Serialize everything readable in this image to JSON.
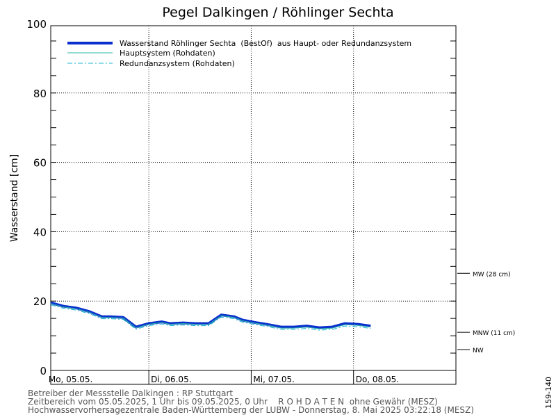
{
  "chart_data": {
    "type": "line",
    "title": "Pegel Dalkingen / Röhlinger Sechta",
    "ylabel": "Wasserstand [cm]",
    "xlabel": "",
    "ylim": [
      0,
      100
    ],
    "y_ticks": [
      "0",
      "20",
      "40",
      "60",
      "80",
      "100"
    ],
    "x_range": [
      "05.05.2025 01:00",
      "09.05.2025 00:00"
    ],
    "x_ticks": [
      "Mo, 05.05.",
      "Di, 06.05.",
      "Mi, 07.05.",
      "Do, 08.05."
    ],
    "grid": true,
    "legend_position": "top-left",
    "series": [
      {
        "name": "Wasserstand Röhlinger Sechta  (BestOf)  aus Haupt- oder Redundanzsystem",
        "color": "#0a2fcf",
        "style": "thick",
        "x": [
          "05.05. 01:00",
          "05.05. 04:00",
          "05.05. 07:00",
          "05.05. 10:00",
          "05.05. 13:00",
          "05.05. 15:00",
          "05.05. 18:00",
          "05.05. 21:00",
          "06.05. 00:00",
          "06.05. 03:00",
          "06.05. 05:00",
          "06.05. 08:00",
          "06.05. 11:00",
          "06.05. 14:00",
          "06.05. 17:00",
          "06.05. 20:00",
          "06.05. 22:00",
          "07.05. 01:00",
          "07.05. 04:00",
          "07.05. 07:00",
          "07.05. 10:00",
          "07.05. 13:00",
          "07.05. 16:00",
          "07.05. 19:00",
          "07.05. 22:00",
          "08.05. 01:00",
          "08.05. 04:00"
        ],
        "y": [
          19.5,
          18.5,
          18,
          17,
          15.5,
          15.5,
          15.3,
          12.5,
          13.5,
          14,
          13.5,
          13.7,
          13.5,
          13.5,
          16,
          15.5,
          14.5,
          13.8,
          13.2,
          12.5,
          12.5,
          12.8,
          12.3,
          12.5,
          13.5,
          13.3,
          12.8
        ]
      },
      {
        "name": "Hauptsystem (Rohdaten)",
        "color": "#2ab6a6",
        "style": "thin",
        "x": [
          "05.05. 01:00",
          "05.05. 04:00",
          "05.05. 07:00",
          "05.05. 10:00",
          "05.05. 13:00",
          "05.05. 15:00",
          "05.05. 18:00",
          "05.05. 21:00",
          "06.05. 00:00",
          "06.05. 03:00",
          "06.05. 05:00",
          "06.05. 08:00",
          "06.05. 11:00",
          "06.05. 14:00",
          "06.05. 17:00",
          "06.05. 20:00",
          "06.05. 22:00",
          "07.05. 01:00",
          "07.05. 04:00",
          "07.05. 07:00",
          "07.05. 10:00",
          "07.05. 13:00",
          "07.05. 16:00",
          "07.05. 19:00",
          "07.05. 22:00",
          "08.05. 01:00",
          "08.05. 04:00"
        ],
        "y": [
          19.3,
          18.3,
          17.8,
          16.8,
          15.3,
          15.3,
          15.1,
          12.3,
          13.3,
          13.8,
          13.3,
          13.5,
          13.3,
          13.3,
          15.8,
          15.3,
          14.3,
          13.6,
          13.0,
          12.2,
          12.2,
          12.5,
          12.0,
          12.2,
          13.2,
          13.0,
          12.5
        ]
      },
      {
        "name": "Redundanzsystem (Rohdaten)",
        "color": "#19b6d4",
        "style": "dashdot",
        "x": [
          "05.05. 01:00",
          "05.05. 04:00",
          "05.05. 07:00",
          "05.05. 10:00",
          "05.05. 13:00",
          "05.05. 15:00",
          "05.05. 18:00",
          "05.05. 21:00",
          "06.05. 00:00",
          "06.05. 03:00",
          "06.05. 05:00",
          "06.05. 08:00",
          "06.05. 11:00",
          "06.05. 14:00",
          "06.05. 17:00",
          "06.05. 20:00",
          "06.05. 22:00",
          "07.05. 01:00",
          "07.05. 04:00",
          "07.05. 07:00",
          "07.05. 10:00",
          "07.05. 13:00",
          "07.05. 16:00",
          "07.05. 19:00",
          "07.05. 22:00",
          "08.05. 01:00",
          "08.05. 04:00"
        ],
        "y": [
          18.9,
          17.9,
          17.4,
          16.4,
          14.9,
          14.9,
          14.7,
          11.9,
          12.9,
          13.4,
          12.9,
          13.1,
          12.9,
          12.9,
          15.4,
          14.9,
          13.9,
          13.2,
          12.6,
          11.8,
          11.8,
          12.1,
          11.6,
          11.8,
          12.8,
          12.6,
          12.1
        ]
      }
    ],
    "reference_lines": [
      {
        "label": "MW (28 cm)",
        "value": 28
      },
      {
        "label": "MNW (11 cm)",
        "value": 11
      },
      {
        "label": "NW",
        "value": 6
      }
    ],
    "annotations": [
      "159-140"
    ]
  },
  "footer": {
    "line1": "Betreiber der Messstelle Dalkingen : RP Stuttgart",
    "line2": "Zeitbereich vom 05.05.2025, 1 Uhr bis 09.05.2025, 0 Uhr    R O H D A T E N  ohne Gewähr (MESZ)",
    "line3": "Hochwasservorhersagezentrale Baden-Württemberg der LUBW - Donnerstag, 8. Mai 2025 03:22:18 (MESZ)"
  },
  "colors": {
    "primary": "#0a2fcf",
    "haupt": "#2ab6a6",
    "redundanz": "#19b6d4",
    "grid": "#000000"
  }
}
